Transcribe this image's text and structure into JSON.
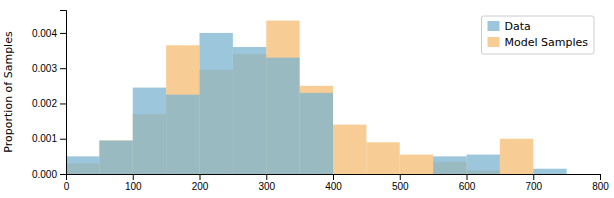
{
  "chart_data": {
    "type": "histogram",
    "ylabel": "Proportion of Samples",
    "bins": [
      0,
      50,
      100,
      150,
      200,
      250,
      300,
      350,
      400,
      450,
      500,
      550,
      600,
      650,
      700,
      750,
      800
    ],
    "series": [
      {
        "name": "Model Samples",
        "color": "#f5bc72",
        "values": [
          0.0003,
          0.00095,
          0.0017,
          0.00365,
          0.00295,
          0.0034,
          0.00435,
          0.0025,
          0.0014,
          0.0009,
          0.00055,
          0.00035,
          0.0001,
          0.001,
          0.0,
          0.0
        ]
      },
      {
        "name": "Data",
        "color": "#7ab3d0",
        "values": [
          0.0005,
          0.00095,
          0.00245,
          0.00225,
          0.004,
          0.0036,
          0.0033,
          0.0023,
          0.0,
          0.0,
          0.0,
          0.0005,
          0.00055,
          0.0,
          0.00015,
          0.0
        ]
      }
    ],
    "xlim": [
      0,
      800
    ],
    "xticks": [
      0,
      100,
      200,
      300,
      400,
      500,
      600,
      700,
      800
    ],
    "ylim": [
      0,
      0.00465
    ],
    "yticks": [
      {
        "value": 0,
        "label": "0.000"
      },
      0.001,
      0.002,
      0.003,
      0.004
    ],
    "legend": "upper right"
  }
}
